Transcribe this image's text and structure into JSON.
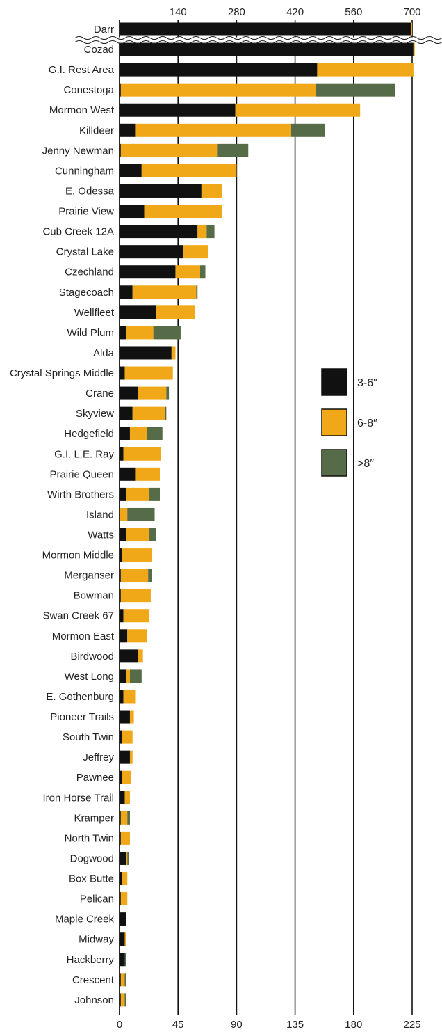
{
  "chart_data": {
    "type": "bar",
    "orientation": "horizontal",
    "stacked": true,
    "colors": {
      "3-6″": "#111111",
      "6-8″": "#f0a818",
      ">8″": "#566b48"
    },
    "legend": [
      "3-6″",
      "6-8″",
      ">8″"
    ],
    "legend_placement": "right",
    "axes": {
      "bottom": {
        "ticks": [
          "0",
          "45",
          "90",
          "135",
          "180",
          "225"
        ],
        "range": [
          0,
          225
        ]
      },
      "top": {
        "ticks": [
          "140",
          "280",
          "420",
          "560",
          "700"
        ],
        "range": [
          0,
          700
        ],
        "applies_to": "Darr"
      }
    },
    "grid": "vertical",
    "axis_break": "below Darr",
    "categories": [
      "Darr",
      "Cozad",
      "G.I. Rest Area",
      "Conestoga",
      "Mormon West",
      "Killdeer",
      "Jenny Newman",
      "Cunningham",
      "E. Odessa",
      "Prairie View",
      "Cub Creek 12A",
      "Crystal Lake",
      "Czechland",
      "Stagecoach",
      "Wellfleet",
      "Wild Plum",
      "Alda",
      "Crystal Springs Middle",
      "Crane",
      "Skyview",
      "Hedgefield",
      "G.I. L.E. Ray",
      "Prairie Queen",
      "Wirth Brothers",
      "Island",
      "Watts",
      "Mormon Middle",
      "Merganser",
      "Bowman",
      "Swan Creek 67",
      "Mormon East",
      "Birdwood",
      "West Long",
      "E. Gothenburg",
      "Pioneer Trails",
      "South Twin",
      "Jeffrey",
      "Pawnee",
      "Iron Horse Trail",
      "Kramper",
      "North Twin",
      "Dogwood",
      "Box Butte",
      "Pelican",
      "Maple Creek",
      "Midway",
      "Hackberry",
      "Crescent",
      "Johnson"
    ],
    "series": [
      {
        "name": "3-6″",
        "values": [
          698,
          226,
          152,
          1,
          89,
          12,
          1,
          17,
          63,
          19,
          60,
          49,
          43,
          10,
          28,
          5,
          40,
          4,
          14,
          10,
          8,
          3,
          12,
          5,
          0,
          5,
          2,
          1,
          1,
          3,
          6,
          14,
          5,
          3,
          8,
          2,
          8,
          2,
          4,
          1,
          1,
          5,
          2,
          1,
          5,
          4,
          4,
          1,
          1
        ]
      },
      {
        "name": "6-8″",
        "values": [
          2,
          1,
          74,
          150,
          96,
          120,
          74,
          73,
          16,
          60,
          7,
          19,
          19,
          49,
          30,
          21,
          3,
          37,
          22,
          25,
          13,
          29,
          19,
          18,
          6,
          18,
          23,
          21,
          23,
          20,
          15,
          4,
          3,
          9,
          3,
          8,
          2,
          7,
          4,
          5,
          7,
          1,
          4,
          5,
          0,
          1,
          0,
          3,
          3
        ]
      },
      {
        "name": ">8″",
        "values": [
          0,
          0,
          0,
          61,
          0,
          26,
          24,
          0,
          0,
          0,
          6,
          0,
          4,
          1,
          0,
          21,
          0,
          0,
          2,
          1,
          12,
          0,
          0,
          8,
          21,
          5,
          0,
          3,
          0,
          0,
          0,
          0,
          9,
          0,
          0,
          0,
          0,
          0,
          0,
          2,
          0,
          1,
          0,
          0,
          0,
          0,
          1,
          1,
          1
        ]
      }
    ]
  }
}
